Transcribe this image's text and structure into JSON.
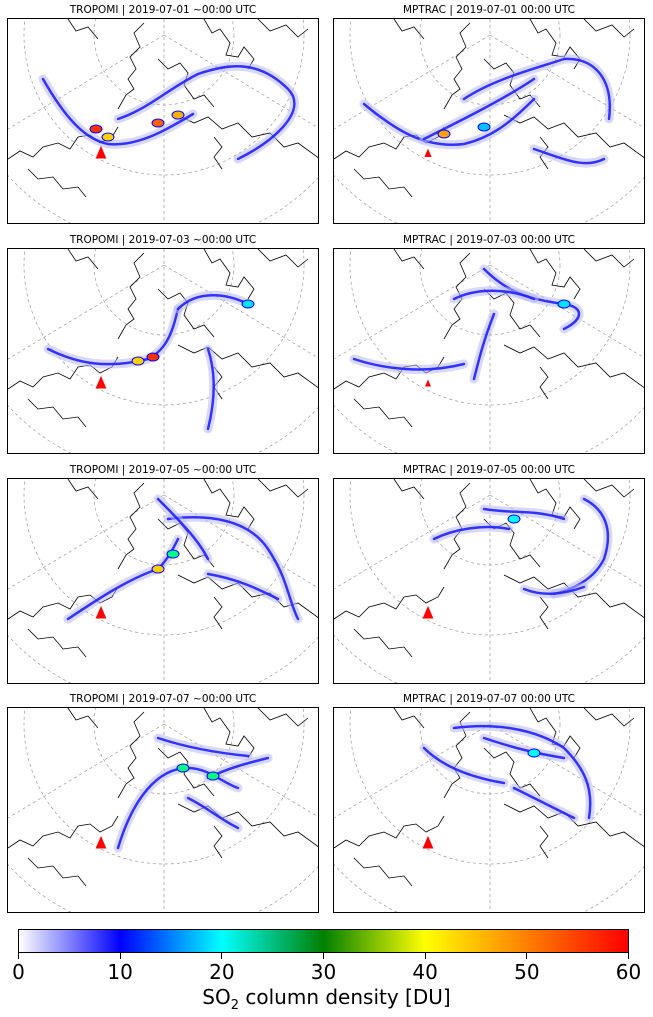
{
  "panels": [
    {
      "title": "TROPOMI | 2019-07-01 ~00:00 UTC",
      "source": "TROPOMI",
      "date": "2019-07-01"
    },
    {
      "title": "MPTRAC | 2019-07-01 00:00 UTC",
      "source": "MPTRAC",
      "date": "2019-07-01"
    },
    {
      "title": "TROPOMI | 2019-07-03 ~00:00 UTC",
      "source": "TROPOMI",
      "date": "2019-07-03"
    },
    {
      "title": "MPTRAC | 2019-07-03 00:00 UTC",
      "source": "MPTRAC",
      "date": "2019-07-03"
    },
    {
      "title": "TROPOMI | 2019-07-05 ~00:00 UTC",
      "source": "TROPOMI",
      "date": "2019-07-05"
    },
    {
      "title": "MPTRAC | 2019-07-05 00:00 UTC",
      "source": "MPTRAC",
      "date": "2019-07-05"
    },
    {
      "title": "TROPOMI | 2019-07-07 ~00:00 UTC",
      "source": "TROPOMI",
      "date": "2019-07-07"
    },
    {
      "title": "MPTRAC | 2019-07-07 00:00 UTC",
      "source": "MPTRAC",
      "date": "2019-07-07"
    }
  ],
  "chart_data": {
    "type": "heatmap",
    "layout": "4x2 grid of map panels",
    "colorbar": {
      "label_prefix": "SO",
      "label_sub": "2",
      "label_suffix": " column density [DU]",
      "min": 0,
      "max": 60,
      "ticks": [
        "0",
        "10",
        "20",
        "30",
        "40",
        "50",
        "60"
      ],
      "colors": [
        "#ffffff",
        "#0000ff",
        "#00ffff",
        "#008000",
        "#ffff00",
        "#ff8000",
        "#ff0000"
      ]
    },
    "marker": {
      "shape": "triangle",
      "color": "#ff0000",
      "meaning": "volcano location"
    },
    "grid": true
  }
}
